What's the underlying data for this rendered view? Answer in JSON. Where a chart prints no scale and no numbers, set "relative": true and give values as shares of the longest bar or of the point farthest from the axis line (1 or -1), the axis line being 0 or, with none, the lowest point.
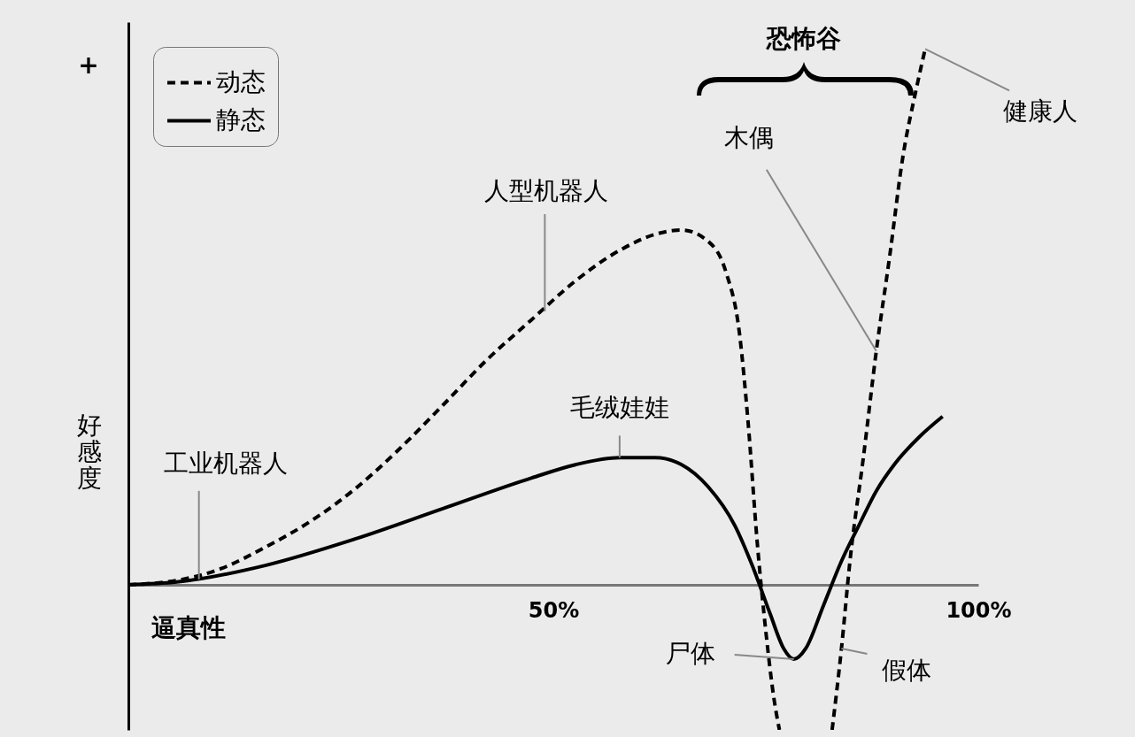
{
  "chart_data": {
    "type": "line",
    "relative": true,
    "xlabel": "逼真性",
    "ylabel": "好感度",
    "xlim": [
      0,
      100
    ],
    "xticks": [
      {
        "value": 50,
        "label": "50%"
      },
      {
        "value": 100,
        "label": "100%"
      }
    ],
    "legend": "top left",
    "series": [
      {
        "name": "动态",
        "color": "#000000",
        "line_style": "dashed",
        "x": [
          0,
          5.7,
          10.9,
          16.1,
          21.4,
          26.6,
          31.8,
          37.0,
          42.2,
          47.4,
          52.6,
          57.8,
          62.0,
          65.1,
          68.2,
          70.3,
          71.9,
          72.9,
          74.0,
          75.0,
          76.0,
          76.6,
          79.7,
          82.8,
          83.9,
          84.9,
          86.5,
          88.0,
          89.6,
          91.1,
          92.7,
          93.75
        ],
        "values": [
          0,
          0.008,
          0.03,
          0.07,
          0.118,
          0.178,
          0.252,
          0.335,
          0.42,
          0.494,
          0.567,
          0.624,
          0.654,
          0.662,
          0.641,
          0.584,
          0.469,
          0.306,
          0.077,
          -0.087,
          -0.217,
          -0.271,
          null,
          -0.271,
          -0.119,
          0.044,
          0.24,
          0.436,
          0.616,
          0.796,
          0.925,
          1.0
        ]
      },
      {
        "name": "静态",
        "color": "#000000",
        "line_style": "solid",
        "x": [
          0,
          5.7,
          16.1,
          26.6,
          37.0,
          47.4,
          52.6,
          57.8,
          62.0,
          65.1,
          68.2,
          71.4,
          73.4,
          75.5,
          77.1,
          78.3,
          79.7,
          81.8,
          83.9,
          85.9,
          88.0,
          90.1,
          93.2,
          95.8
        ],
        "values": [
          0,
          0.005,
          0.036,
          0.085,
          0.142,
          0.199,
          0.224,
          0.237,
          0.237,
          0.224,
          0.183,
          0.109,
          0.036,
          -0.054,
          -0.119,
          -0.139,
          -0.119,
          -0.038,
          0.044,
          0.109,
          0.175,
          0.224,
          0.278,
          0.314
        ]
      }
    ],
    "annotations": [
      "+",
      "恐怖谷",
      {
        "text": "工业机器人",
        "x": 8.3,
        "y": 0.01
      },
      {
        "text": "人型机器人",
        "x": 49,
        "y": 0.51
      },
      {
        "text": "毛绒娃娃",
        "x": 57.8,
        "y": 0.237
      },
      {
        "text": "木偶",
        "x": 88.0,
        "y": 0.436
      },
      {
        "text": "健康人",
        "x": 93.75,
        "y": 1.0
      },
      {
        "text": "尸体",
        "x": 78.3,
        "y": -0.139
      },
      {
        "text": "假体",
        "x": 83.9,
        "y": -0.119
      }
    ]
  }
}
